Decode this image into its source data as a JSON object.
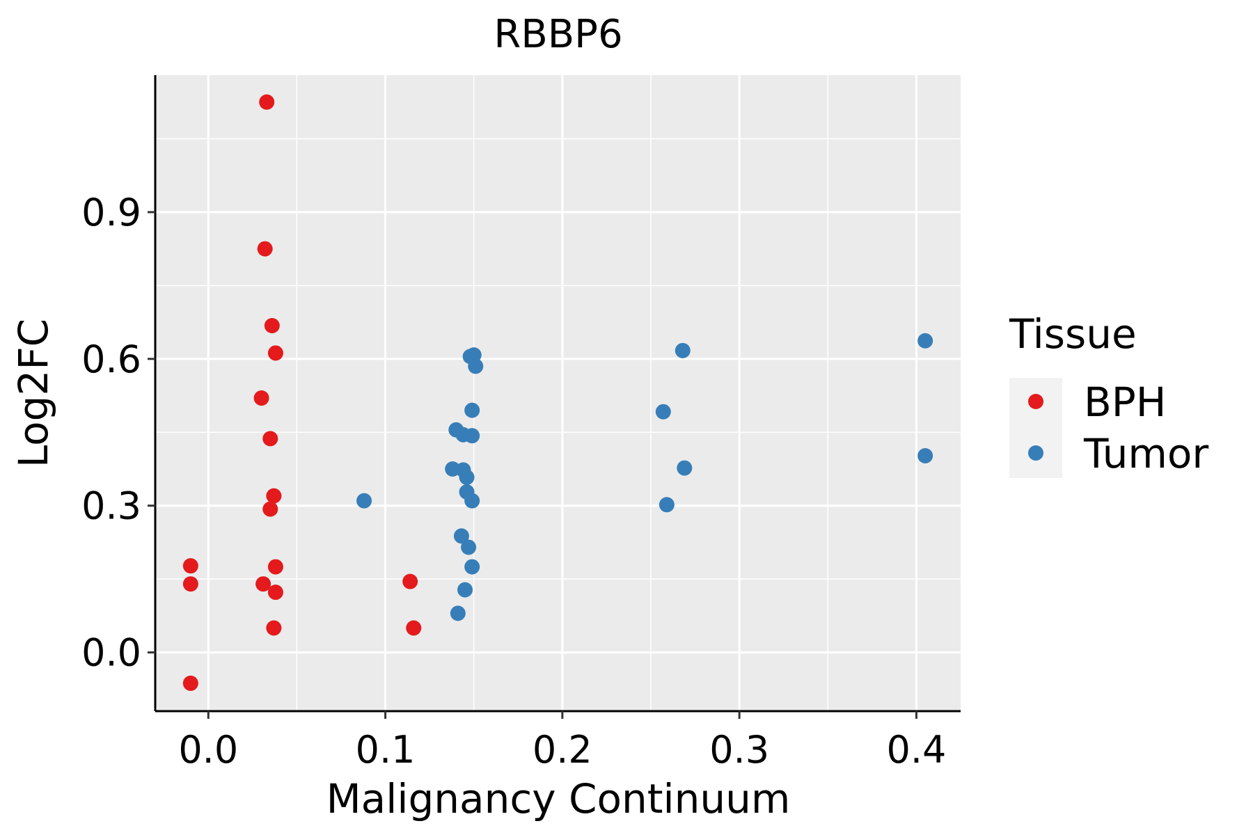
{
  "chart_data": {
    "type": "scatter",
    "title": "RBBP6",
    "xlabel": "Malignancy Continuum",
    "ylabel": "Log2FC",
    "xlim": [
      -0.03,
      0.425
    ],
    "ylim": [
      -0.12,
      1.18
    ],
    "x_ticks": [
      0.0,
      0.1,
      0.2,
      0.3,
      0.4
    ],
    "x_tick_labels": [
      "0.0",
      "0.1",
      "0.2",
      "0.3",
      "0.4"
    ],
    "y_ticks": [
      0.0,
      0.3,
      0.6,
      0.9
    ],
    "y_tick_labels": [
      "0.0",
      "0.3",
      "0.6",
      "0.9"
    ],
    "grid": true,
    "legend": {
      "title": "Tissue",
      "position": "right"
    },
    "series": [
      {
        "name": "BPH",
        "color": "#E41A1C",
        "points": [
          [
            0.033,
            1.125
          ],
          [
            0.032,
            0.825
          ],
          [
            0.036,
            0.668
          ],
          [
            0.038,
            0.612
          ],
          [
            0.03,
            0.52
          ],
          [
            0.035,
            0.437
          ],
          [
            0.037,
            0.32
          ],
          [
            0.035,
            0.293
          ],
          [
            -0.01,
            0.177
          ],
          [
            -0.01,
            0.14
          ],
          [
            0.038,
            0.175
          ],
          [
            0.031,
            0.14
          ],
          [
            0.038,
            0.123
          ],
          [
            0.037,
            0.05
          ],
          [
            0.114,
            0.145
          ],
          [
            0.116,
            0.05
          ],
          [
            -0.01,
            -0.063
          ]
        ]
      },
      {
        "name": "Tumor",
        "color": "#377EB8",
        "points": [
          [
            0.088,
            0.31
          ],
          [
            0.15,
            0.608
          ],
          [
            0.148,
            0.605
          ],
          [
            0.151,
            0.585
          ],
          [
            0.149,
            0.495
          ],
          [
            0.14,
            0.455
          ],
          [
            0.144,
            0.445
          ],
          [
            0.149,
            0.443
          ],
          [
            0.138,
            0.375
          ],
          [
            0.144,
            0.373
          ],
          [
            0.146,
            0.358
          ],
          [
            0.146,
            0.328
          ],
          [
            0.149,
            0.31
          ],
          [
            0.143,
            0.238
          ],
          [
            0.147,
            0.215
          ],
          [
            0.149,
            0.175
          ],
          [
            0.145,
            0.128
          ],
          [
            0.141,
            0.08
          ],
          [
            0.268,
            0.617
          ],
          [
            0.257,
            0.492
          ],
          [
            0.269,
            0.377
          ],
          [
            0.259,
            0.302
          ],
          [
            0.405,
            0.637
          ],
          [
            0.405,
            0.402
          ]
        ]
      }
    ]
  }
}
